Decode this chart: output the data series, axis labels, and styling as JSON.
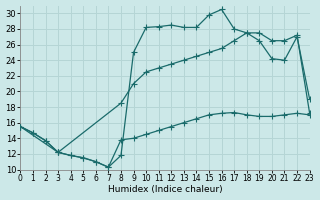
{
  "xlabel": "Humidex (Indice chaleur)",
  "bg_color": "#cce8e8",
  "grid_color": "#b5d5d5",
  "line_color": "#1a6b6b",
  "xlim": [
    0,
    23
  ],
  "ylim": [
    10,
    31
  ],
  "xticks": [
    0,
    1,
    2,
    3,
    4,
    5,
    6,
    7,
    8,
    9,
    10,
    11,
    12,
    13,
    14,
    15,
    16,
    17,
    18,
    19,
    20,
    21,
    22,
    23
  ],
  "yticks": [
    10,
    12,
    14,
    16,
    18,
    20,
    22,
    24,
    26,
    28,
    30
  ],
  "line_peak_x": [
    0,
    1,
    2,
    3,
    4,
    5,
    6,
    7,
    8,
    9,
    10,
    11,
    12,
    13,
    14,
    15,
    16,
    17,
    18,
    19,
    20,
    21,
    22,
    23
  ],
  "line_peak_y": [
    15.5,
    14.7,
    13.7,
    12.2,
    11.8,
    11.5,
    11.0,
    10.3,
    11.8,
    25.0,
    28.2,
    28.3,
    28.5,
    28.2,
    28.2,
    29.8,
    30.5,
    28.0,
    27.5,
    26.5,
    24.2,
    24.0,
    27.0,
    19.0
  ],
  "line_diag_x": [
    0,
    3,
    8,
    9,
    10,
    11,
    12,
    13,
    14,
    15,
    16,
    17,
    18,
    19,
    20,
    21,
    22,
    23
  ],
  "line_diag_y": [
    15.5,
    12.2,
    18.5,
    21.0,
    22.5,
    23.0,
    23.5,
    24.0,
    24.5,
    25.0,
    25.5,
    26.5,
    27.5,
    27.5,
    26.5,
    26.5,
    27.2,
    17.2
  ],
  "line_flat_x": [
    0,
    1,
    2,
    3,
    4,
    5,
    6,
    7,
    8,
    9,
    10,
    11,
    12,
    13,
    14,
    15,
    16,
    17,
    18,
    19,
    20,
    21,
    22,
    23
  ],
  "line_flat_y": [
    15.5,
    14.7,
    13.7,
    12.2,
    11.8,
    11.5,
    11.0,
    10.3,
    13.8,
    14.0,
    14.5,
    15.0,
    15.5,
    16.0,
    16.5,
    17.0,
    17.2,
    17.3,
    17.0,
    16.8,
    16.8,
    17.0,
    17.2,
    17.0
  ]
}
